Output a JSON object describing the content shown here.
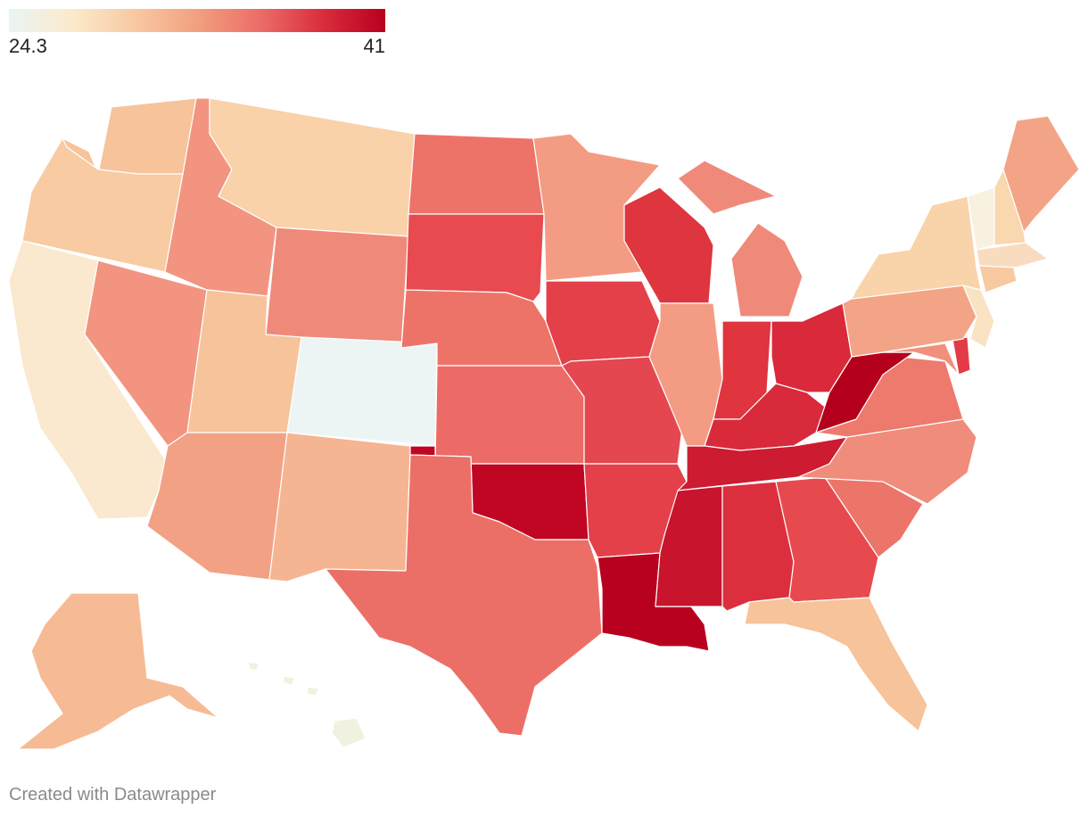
{
  "legend": {
    "min_label": "24.3",
    "max_label": "41",
    "min": 24.3,
    "max": 41,
    "gradient": [
      "#e9f5f5",
      "#fbeacc",
      "#f8c9a3",
      "#f2a07f",
      "#ec6d68",
      "#d92d3d",
      "#b8001f"
    ]
  },
  "states": [
    {
      "id": "WA",
      "color": "#f6c39b"
    },
    {
      "id": "OR",
      "color": "#f8cba3"
    },
    {
      "id": "CA",
      "color": "#fae8cf"
    },
    {
      "id": "NV",
      "color": "#f29480"
    },
    {
      "id": "ID",
      "color": "#f29480"
    },
    {
      "id": "MT",
      "color": "#f9d2aa"
    },
    {
      "id": "WY",
      "color": "#ef8a7b"
    },
    {
      "id": "UT",
      "color": "#f6c39b"
    },
    {
      "id": "AZ",
      "color": "#f3a184"
    },
    {
      "id": "CO",
      "color": "#ecf5f4"
    },
    {
      "id": "NM",
      "color": "#f6b592"
    },
    {
      "id": "ND",
      "color": "#ed7368"
    },
    {
      "id": "SD",
      "color": "#e84a4f"
    },
    {
      "id": "NE",
      "color": "#ed7368"
    },
    {
      "id": "KS",
      "color": "#ec6b66"
    },
    {
      "id": "OK",
      "color": "#c00623"
    },
    {
      "id": "TX",
      "color": "#ec6f67"
    },
    {
      "id": "MN",
      "color": "#f39c83"
    },
    {
      "id": "IA",
      "color": "#e3404a"
    },
    {
      "id": "MO",
      "color": "#e4474f"
    },
    {
      "id": "AR",
      "color": "#e3404a"
    },
    {
      "id": "LA",
      "color": "#b8001f"
    },
    {
      "id": "WI",
      "color": "#de353f"
    },
    {
      "id": "IL",
      "color": "#f39c83"
    },
    {
      "id": "MI",
      "color": "#ef8a7b"
    },
    {
      "id": "IN",
      "color": "#e0343f"
    },
    {
      "id": "OH",
      "color": "#d9293a"
    },
    {
      "id": "KY",
      "color": "#d92a3c"
    },
    {
      "id": "TN",
      "color": "#cd1b31"
    },
    {
      "id": "MS",
      "color": "#c8142d"
    },
    {
      "id": "AL",
      "color": "#dc2f3d"
    },
    {
      "id": "GA",
      "color": "#e64a4f"
    },
    {
      "id": "FL",
      "color": "#f7c39a"
    },
    {
      "id": "SC",
      "color": "#ec7569"
    },
    {
      "id": "NC",
      "color": "#ef8c7b"
    },
    {
      "id": "VA",
      "color": "#ed7a6d"
    },
    {
      "id": "WV",
      "color": "#b4001c"
    },
    {
      "id": "PA",
      "color": "#f4a486"
    },
    {
      "id": "NY",
      "color": "#f9d3a9"
    },
    {
      "id": "ME",
      "color": "#f4a486"
    },
    {
      "id": "VT",
      "color": "#f8f1df"
    },
    {
      "id": "NH",
      "color": "#f9d7af"
    },
    {
      "id": "MA",
      "color": "#f9dcc0"
    },
    {
      "id": "CT",
      "color": "#f8c9a0"
    },
    {
      "id": "NJ",
      "color": "#fae3c3"
    },
    {
      "id": "DE",
      "color": "#e23b47"
    },
    {
      "id": "MD",
      "color": "#f18f7d"
    },
    {
      "id": "AK",
      "color": "#f6bb95"
    },
    {
      "id": "HI",
      "color": "#f1f1e0"
    }
  ],
  "credit": "Created with Datawrapper"
}
